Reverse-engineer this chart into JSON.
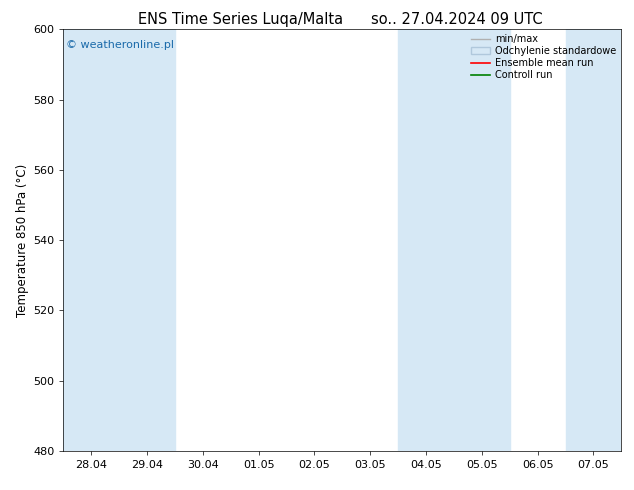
{
  "title_left": "ENS Time Series Luqa/Malta",
  "title_right": "so.. 27.04.2024 09 UTC",
  "ylabel": "Temperature 850 hPa (°C)",
  "ylim": [
    480,
    600
  ],
  "yticks": [
    480,
    500,
    520,
    540,
    560,
    580,
    600
  ],
  "x_labels": [
    "28.04",
    "29.04",
    "30.04",
    "01.05",
    "02.05",
    "03.05",
    "04.05",
    "05.05",
    "06.05",
    "07.05"
  ],
  "watermark": "© weatheronline.pl",
  "bg_color": "#ffffff",
  "plot_bg_color": "#ffffff",
  "band_color": "#d6e8f5",
  "band_indices": [
    0,
    1,
    6,
    7,
    9
  ],
  "legend_entries": [
    {
      "label": "min/max",
      "color": "#b0b0b0",
      "lw": 1.0
    },
    {
      "label": "Odchylenie standardowe",
      "color": "#c5d8ea",
      "lw": 6
    },
    {
      "label": "Ensemble mean run",
      "color": "#ff0000",
      "lw": 1.2
    },
    {
      "label": "Controll run",
      "color": "#008000",
      "lw": 1.2
    }
  ],
  "title_fontsize": 10.5,
  "tick_fontsize": 8,
  "ylabel_fontsize": 8.5,
  "watermark_color": "#1a6aaa",
  "watermark_fontsize": 8
}
